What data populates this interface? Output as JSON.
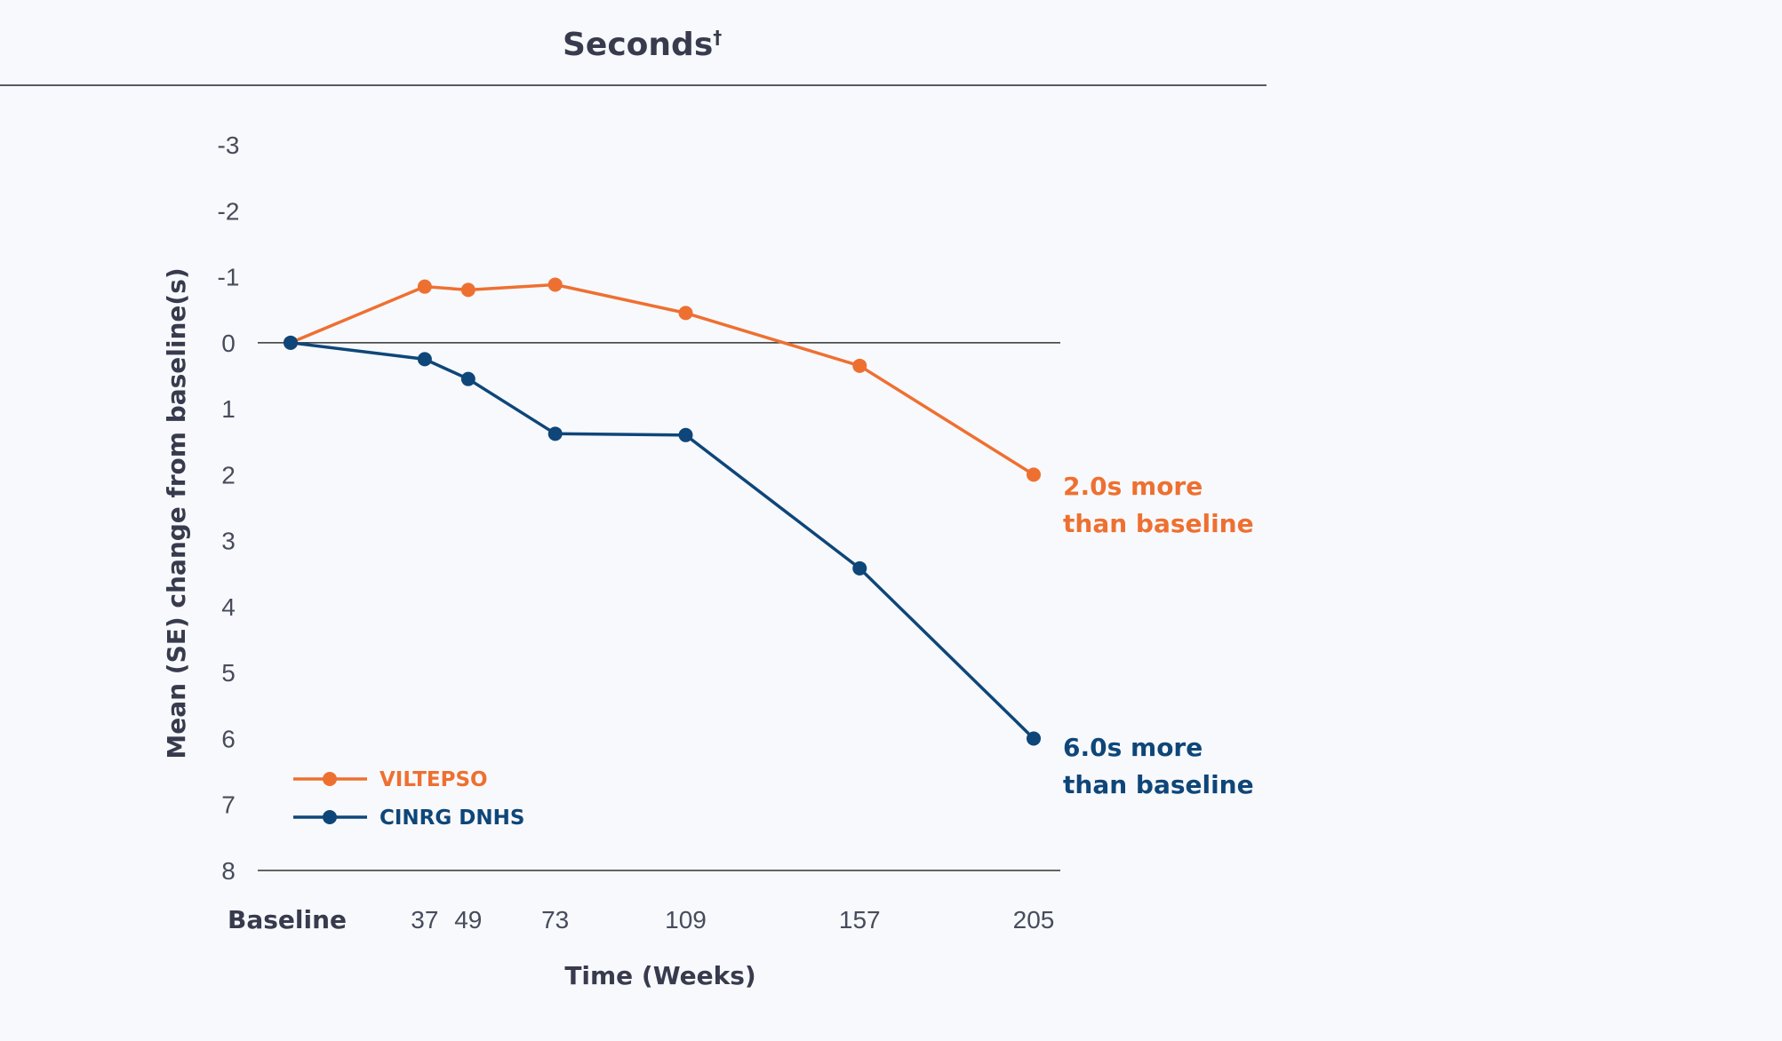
{
  "header": {
    "title": "Seconds",
    "title_mark": "†"
  },
  "chart_data": {
    "type": "line",
    "xlabel": "Time (Weeks)",
    "ylabel": "Mean (SE) change from baseline(s)",
    "x": [
      0,
      37,
      49,
      73,
      109,
      157,
      205
    ],
    "x_tick_labels": [
      "Baseline",
      "37",
      "49",
      "73",
      "109",
      "157",
      "205"
    ],
    "ylim": [
      -3,
      8
    ],
    "y_inverted": true,
    "y_ticks": [
      -3,
      -2,
      -1,
      0,
      1,
      2,
      3,
      4,
      5,
      6,
      7,
      8
    ],
    "grid": false,
    "zero_line": true,
    "legend_position": "bottom-left",
    "series": [
      {
        "name": "VILTEPSO",
        "color": "#ee7031",
        "values": [
          0,
          -0.85,
          -0.8,
          -0.88,
          -0.45,
          0.35,
          2.0
        ],
        "end_annotation": [
          "2.0s more",
          "than baseline"
        ]
      },
      {
        "name": "CINRG DNHS",
        "color": "#0e4679",
        "values": [
          0,
          0.25,
          0.55,
          1.38,
          1.4,
          3.42,
          6.0
        ],
        "end_annotation": [
          "6.0s more",
          "than baseline"
        ]
      }
    ]
  }
}
